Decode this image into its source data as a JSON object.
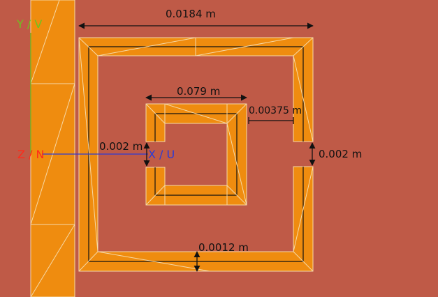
{
  "dimensions": {
    "outer_width": "0.0184 m",
    "inner_width": "0.079 m",
    "inner_gap": "0.00375 m",
    "inner_slit": "0.002 m",
    "outer_slit": "0.002 m",
    "trace_width": "0.0012 m"
  },
  "axes": {
    "y_label": "Y / V",
    "z_label": "Z / N",
    "x_label": "X / U"
  },
  "colors": {
    "background": "#bf5a47",
    "conductor": "#ef8c0f",
    "mesh_edge": "#f6d9a8",
    "dim_line": "#111111",
    "y_axis": "#6ec21f",
    "z_axis": "#ff2a1a",
    "x_axis": "#2b3bd6"
  }
}
